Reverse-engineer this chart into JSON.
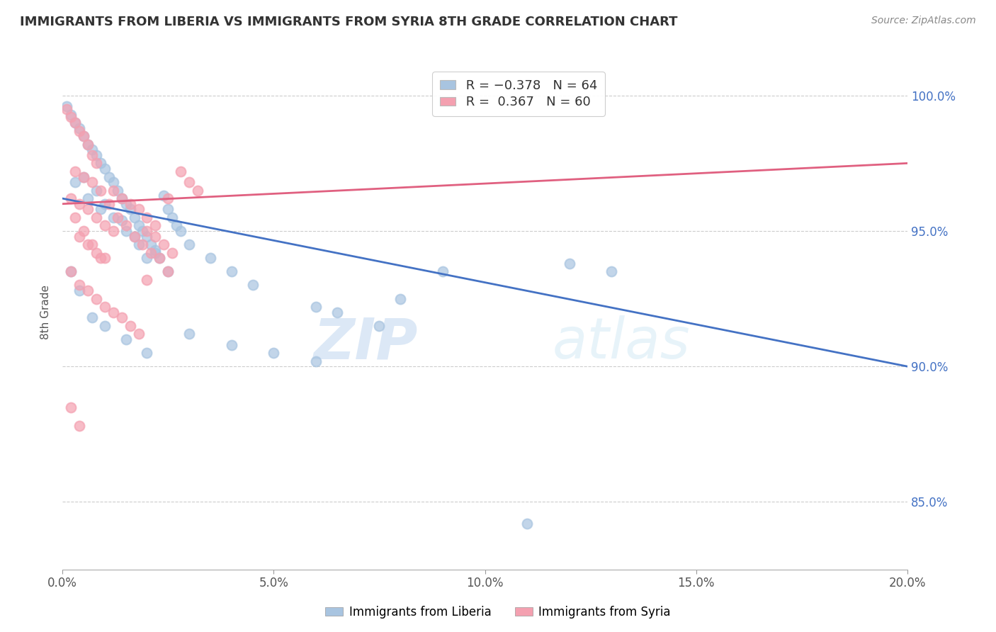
{
  "title": "IMMIGRANTS FROM LIBERIA VS IMMIGRANTS FROM SYRIA 8TH GRADE CORRELATION CHART",
  "source": "Source: ZipAtlas.com",
  "ylabel": "8th Grade",
  "xmin": 0.0,
  "xmax": 0.2,
  "ymin": 82.5,
  "ymax": 101.5,
  "liberia_color": "#a8c4e0",
  "syria_color": "#f4a0b0",
  "liberia_line_color": "#4472c4",
  "syria_line_color": "#e06080",
  "legend_r1": "R = −0.378",
  "legend_n1": "N = 64",
  "legend_r2": "R =  0.367",
  "legend_n2": "N = 60",
  "ytick_vals": [
    85.0,
    90.0,
    95.0,
    100.0
  ],
  "xtick_vals": [
    0.0,
    0.05,
    0.1,
    0.15,
    0.2
  ],
  "liberia_line_x0": 0.0,
  "liberia_line_y0": 96.2,
  "liberia_line_x1": 0.2,
  "liberia_line_y1": 90.0,
  "syria_line_x0": 0.0,
  "syria_line_y0": 96.0,
  "syria_line_x1": 0.2,
  "syria_line_y1": 97.5,
  "liberia_scatter": [
    [
      0.001,
      99.6
    ],
    [
      0.002,
      99.3
    ],
    [
      0.003,
      99.0
    ],
    [
      0.004,
      98.8
    ],
    [
      0.005,
      98.5
    ],
    [
      0.006,
      98.2
    ],
    [
      0.007,
      98.0
    ],
    [
      0.008,
      97.8
    ],
    [
      0.009,
      97.5
    ],
    [
      0.01,
      97.3
    ],
    [
      0.011,
      97.0
    ],
    [
      0.012,
      96.8
    ],
    [
      0.013,
      96.5
    ],
    [
      0.014,
      96.2
    ],
    [
      0.015,
      96.0
    ],
    [
      0.016,
      95.8
    ],
    [
      0.017,
      95.5
    ],
    [
      0.018,
      95.2
    ],
    [
      0.019,
      95.0
    ],
    [
      0.02,
      94.8
    ],
    [
      0.021,
      94.5
    ],
    [
      0.022,
      94.2
    ],
    [
      0.023,
      94.0
    ],
    [
      0.024,
      96.3
    ],
    [
      0.025,
      95.8
    ],
    [
      0.026,
      95.5
    ],
    [
      0.027,
      95.2
    ],
    [
      0.028,
      95.0
    ],
    [
      0.005,
      97.0
    ],
    [
      0.008,
      96.5
    ],
    [
      0.01,
      96.0
    ],
    [
      0.012,
      95.5
    ],
    [
      0.015,
      95.0
    ],
    [
      0.018,
      94.5
    ],
    [
      0.02,
      94.0
    ],
    [
      0.025,
      93.5
    ],
    [
      0.003,
      96.8
    ],
    [
      0.006,
      96.2
    ],
    [
      0.009,
      95.8
    ],
    [
      0.014,
      95.4
    ],
    [
      0.017,
      94.8
    ],
    [
      0.022,
      94.3
    ],
    [
      0.03,
      94.5
    ],
    [
      0.035,
      94.0
    ],
    [
      0.04,
      93.5
    ],
    [
      0.045,
      93.0
    ],
    [
      0.002,
      93.5
    ],
    [
      0.004,
      92.8
    ],
    [
      0.007,
      91.8
    ],
    [
      0.01,
      91.5
    ],
    [
      0.015,
      91.0
    ],
    [
      0.02,
      90.5
    ],
    [
      0.03,
      91.2
    ],
    [
      0.04,
      90.8
    ],
    [
      0.05,
      90.5
    ],
    [
      0.06,
      90.2
    ],
    [
      0.075,
      91.5
    ],
    [
      0.09,
      93.5
    ],
    [
      0.12,
      93.8
    ],
    [
      0.06,
      92.2
    ],
    [
      0.08,
      92.5
    ],
    [
      0.13,
      93.5
    ],
    [
      0.11,
      84.2
    ],
    [
      0.065,
      92.0
    ]
  ],
  "syria_scatter": [
    [
      0.001,
      99.5
    ],
    [
      0.002,
      99.2
    ],
    [
      0.003,
      99.0
    ],
    [
      0.004,
      98.7
    ],
    [
      0.005,
      98.5
    ],
    [
      0.006,
      98.2
    ],
    [
      0.007,
      97.8
    ],
    [
      0.008,
      97.5
    ],
    [
      0.003,
      97.2
    ],
    [
      0.005,
      97.0
    ],
    [
      0.007,
      96.8
    ],
    [
      0.009,
      96.5
    ],
    [
      0.002,
      96.2
    ],
    [
      0.004,
      96.0
    ],
    [
      0.006,
      95.8
    ],
    [
      0.008,
      95.5
    ],
    [
      0.01,
      95.2
    ],
    [
      0.012,
      95.0
    ],
    [
      0.004,
      94.8
    ],
    [
      0.006,
      94.5
    ],
    [
      0.008,
      94.2
    ],
    [
      0.01,
      94.0
    ],
    [
      0.012,
      96.5
    ],
    [
      0.014,
      96.2
    ],
    [
      0.016,
      96.0
    ],
    [
      0.018,
      95.8
    ],
    [
      0.02,
      95.5
    ],
    [
      0.022,
      95.2
    ],
    [
      0.003,
      95.5
    ],
    [
      0.005,
      95.0
    ],
    [
      0.007,
      94.5
    ],
    [
      0.009,
      94.0
    ],
    [
      0.011,
      96.0
    ],
    [
      0.013,
      95.5
    ],
    [
      0.015,
      95.2
    ],
    [
      0.017,
      94.8
    ],
    [
      0.019,
      94.5
    ],
    [
      0.021,
      94.2
    ],
    [
      0.023,
      94.0
    ],
    [
      0.025,
      96.2
    ],
    [
      0.002,
      93.5
    ],
    [
      0.004,
      93.0
    ],
    [
      0.006,
      92.8
    ],
    [
      0.008,
      92.5
    ],
    [
      0.01,
      92.2
    ],
    [
      0.012,
      92.0
    ],
    [
      0.014,
      91.8
    ],
    [
      0.016,
      91.5
    ],
    [
      0.018,
      91.2
    ],
    [
      0.02,
      95.0
    ],
    [
      0.022,
      94.8
    ],
    [
      0.024,
      94.5
    ],
    [
      0.026,
      94.2
    ],
    [
      0.028,
      97.2
    ],
    [
      0.03,
      96.8
    ],
    [
      0.032,
      96.5
    ],
    [
      0.002,
      88.5
    ],
    [
      0.004,
      87.8
    ],
    [
      0.02,
      93.2
    ],
    [
      0.025,
      93.5
    ]
  ]
}
